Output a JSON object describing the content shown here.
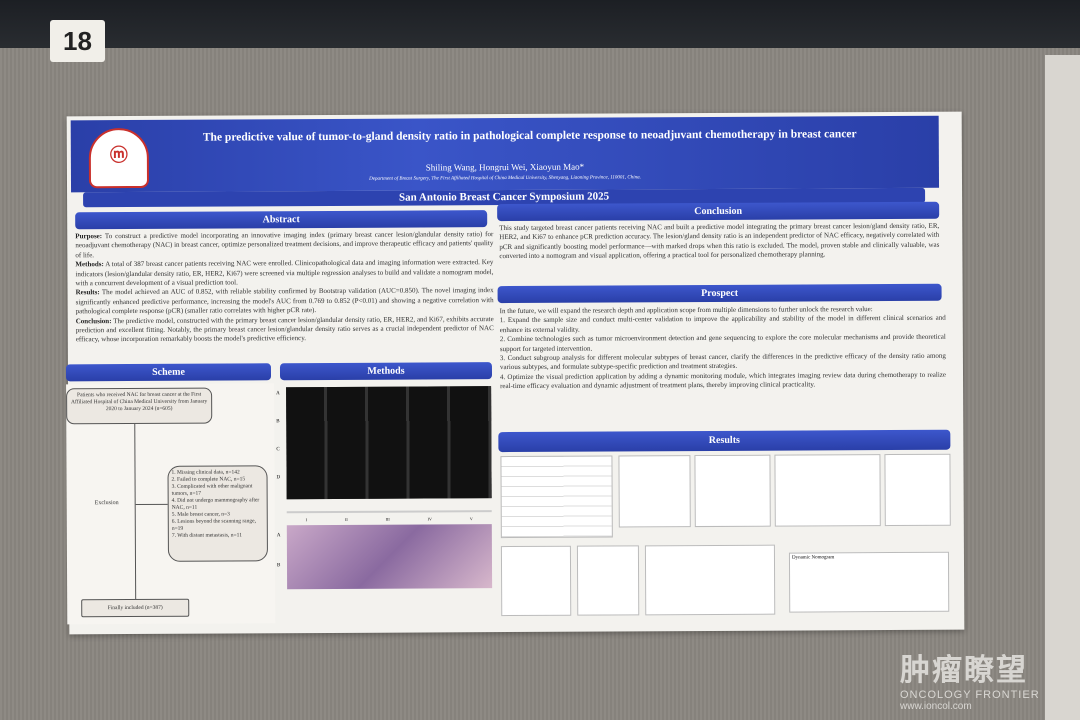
{
  "booth_number": "18",
  "poster": {
    "logo_text": "CMU",
    "title": "The predictive value of tumor-to-gland density ratio in pathological complete response to neoadjuvant chemotherapy in breast cancer",
    "authors": "Shiling Wang, Hongrui Wei, Xiaoyun Mao*",
    "affiliation": "Department of Breast Surgery, The First Affiliated Hospital of China Medical University, Shenyang, Liaoning Province, 110001, China.",
    "conference": "San Antonio Breast Cancer Symposium 2025",
    "abstract": {
      "heading": "Abstract",
      "purpose_label": "Purpose:",
      "purpose": " To construct a predictive model incorporating an innovative imaging index (primary breast cancer lesion/glandular density ratio) for neoadjuvant chemotherapy (NAC) in breast cancer, optimize personalized treatment decisions, and improve therapeutic efficacy and patients' quality of life.",
      "methods_label": "Methods:",
      "methods": " A total of 387 breast cancer patients receiving NAC were enrolled. Clinicopathological data and imaging information were extracted. Key indicators (lesion/glandular density ratio, ER, HER2, Ki67) were screened via multiple regression analyses to build and validate a nomogram model, with a concurrent development of a visual prediction tool.",
      "results_label": "Results:",
      "results": " The model achieved an AUC of 0.852, with reliable stability confirmed by Bootstrap validation (AUC=0.850). The novel imaging index significantly enhanced predictive performance, increasing the model's AUC from 0.769 to 0.852 (P<0.01) and showing a negative correlation with pathological complete response (pCR) (smaller ratio correlates with higher pCR rate).",
      "conclusion_label": "Conclusion:",
      "conclusion": " The predictive model, constructed with the primary breast cancer lesion/glandular density ratio, ER, HER2, and Ki67, exhibits accurate prediction and excellent fitting. Notably, the primary breast cancer lesion/glandular density ratio serves as a crucial independent predictor of NAC efficacy, whose incorporation remarkably boosts the model's predictive efficiency."
    },
    "scheme": {
      "heading": "Scheme",
      "start": "Patients who received NAC for breast cancer at the First Affiliated Hospital of China Medical University from January 2020 to January 2024 (n=605)",
      "exclusion_label": "Exclusion",
      "exclusions": [
        "1. Missing clinical data, n=142",
        "2. Failed to complete NAC, n=15",
        "3. Complicated with other malignant tumors, n=17",
        "4. Did not undergo mammography after NAC, n=11",
        "5. Male breast cancer, n=3",
        "6. Lesions beyond the scanning range, n=19",
        "7. With distant metastasis, n=11"
      ],
      "final": "Finally included (n=387)"
    },
    "methods": {
      "heading": "Methods",
      "row_labels": [
        "A",
        "B",
        "C",
        "D"
      ],
      "histo_labels": [
        "A",
        "B"
      ],
      "col_labels": [
        "I",
        "II",
        "III",
        "IV",
        "V"
      ]
    },
    "conclusion": {
      "heading": "Conclusion",
      "text": "This study targeted breast cancer patients receiving NAC and built a predictive model integrating the primary breast cancer lesion/gland density ratio, ER, HER2, and Ki67 to enhance pCR prediction accuracy. The lesion/gland density ratio is an independent predictor of NAC efficacy, negatively correlated with pCR and significantly boosting model performance—with marked drops when this ratio is excluded. The model, proven stable and clinically valuable, was converted into a nomogram and visual application, offering a practical tool for personalized chemotherapy planning."
    },
    "prospect": {
      "heading": "Prospect",
      "intro": "In the future, we will expand the research depth and application scope from multiple dimensions to further unlock the research value:",
      "items": [
        "1. Expand the sample size and conduct multi-center validation to improve the applicability and stability of the model in different clinical scenarios and enhance its external validity.",
        "2. Combine technologies such as tumor microenvironment detection and gene sequencing to explore the core molecular mechanisms and provide theoretical support for targeted intervention.",
        "3. Conduct subgroup analysis for different molecular subtypes of breast cancer, clarify the differences in the predictive efficacy of the density ratio among various subtypes, and formulate subtype-specific prediction and treatment strategies.",
        "4. Optimize the visual prediction application by adding a dynamic monitoring module, which integrates imaging review data during chemotherapy to realize real-time efficacy evaluation and dynamic adjustment of treatment plans, thereby improving clinical practicality."
      ]
    },
    "results": {
      "heading": "Results",
      "nomogram_title": "Dynamic Nomogram"
    }
  },
  "watermark": {
    "cn": "肿瘤瞭望",
    "en": "ONCOLOGY FRONTIER",
    "url": "www.ioncol.com"
  }
}
